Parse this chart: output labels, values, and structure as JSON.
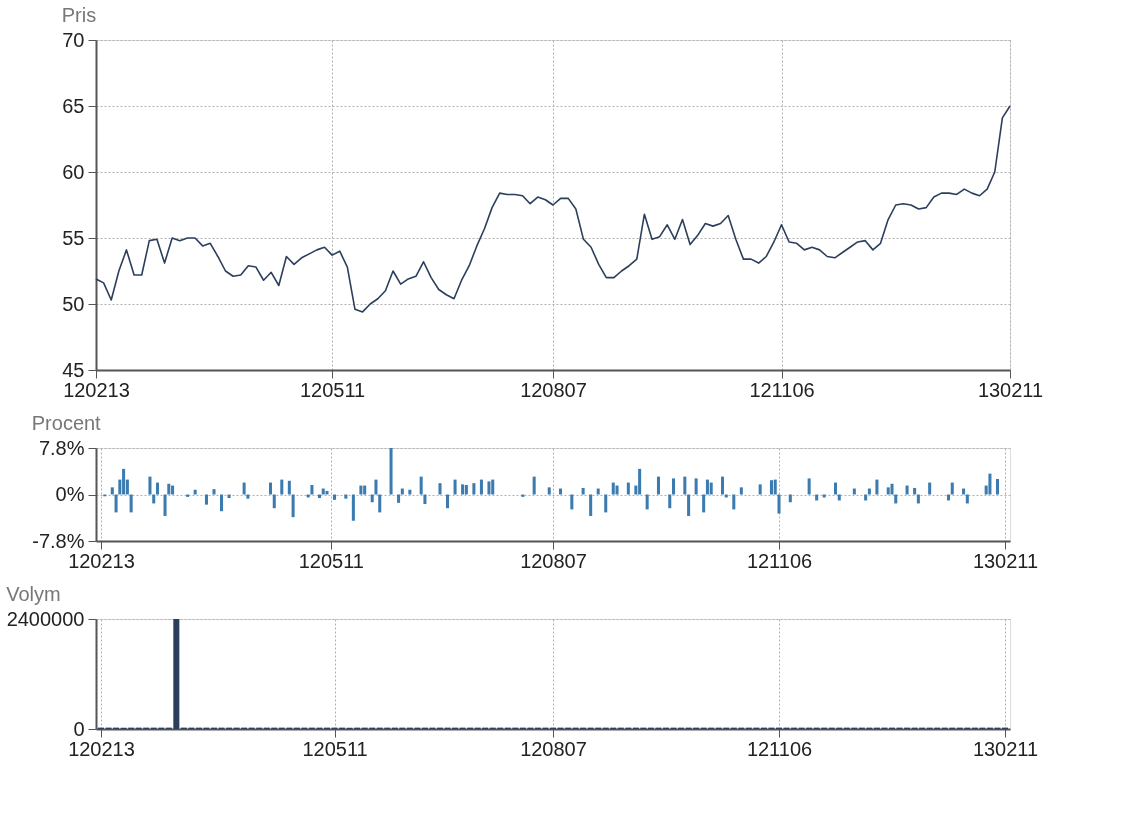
{
  "chart_data": [
    {
      "type": "line",
      "title": "Pris",
      "categories": [
        "120213",
        null,
        null,
        null,
        null,
        null,
        null,
        null,
        null,
        null,
        null,
        null,
        null,
        null,
        null,
        null,
        null,
        null,
        null,
        null,
        null,
        null,
        null,
        null,
        null,
        null,
        null,
        null,
        null,
        null,
        null,
        "120511",
        null,
        null,
        null,
        null,
        null,
        null,
        null,
        null,
        null,
        null,
        null,
        null,
        null,
        null,
        null,
        null,
        null,
        null,
        null,
        null,
        null,
        null,
        null,
        null,
        null,
        null,
        null,
        null,
        "120807",
        null,
        null,
        null,
        null,
        null,
        null,
        null,
        null,
        null,
        null,
        null,
        null,
        null,
        null,
        null,
        null,
        null,
        null,
        null,
        null,
        null,
        null,
        null,
        null,
        null,
        null,
        null,
        null,
        null,
        "121106",
        null,
        null,
        null,
        null,
        null,
        null,
        null,
        null,
        null,
        null,
        null,
        null,
        null,
        null,
        null,
        null,
        null,
        null,
        null,
        null,
        null,
        null,
        null,
        null,
        null,
        null,
        null,
        null,
        null,
        "130211"
      ],
      "values": [
        51.9,
        51.6,
        50.3,
        52.5,
        54.1,
        52.2,
        52.2,
        54.8,
        54.9,
        53.1,
        55,
        54.8,
        55,
        55,
        54.4,
        54.6,
        53.6,
        52.5,
        52.1,
        52.2,
        52.9,
        52.8,
        51.8,
        52.4,
        51.4,
        53.6,
        53,
        53.5,
        53.8,
        54.1,
        54.3,
        53.7,
        54,
        52.8,
        49.6,
        49.4,
        50,
        50.4,
        51,
        52.5,
        51.5,
        51.9,
        52.1,
        53.2,
        52,
        51.1,
        50.7,
        50.4,
        51.8,
        52.9,
        54.4,
        55.7,
        57.3,
        58.4,
        58.3,
        58.3,
        58.2,
        57.6,
        58.1,
        57.9,
        57.5,
        58,
        58,
        57.2,
        54.9,
        54.3,
        53,
        52,
        52,
        52.5,
        52.9,
        53.4,
        56.8,
        54.9,
        55.1,
        56,
        54.9,
        56.4,
        54.5,
        55.2,
        56.1,
        55.9,
        56.1,
        56.7,
        54.9,
        53.4,
        53.4,
        53.1,
        53.6,
        54.7,
        56,
        54.7,
        54.6,
        54.1,
        54.3,
        54.1,
        53.6,
        53.5,
        53.9,
        54.3,
        54.7,
        54.8,
        54.1,
        54.6,
        56.4,
        57.5,
        57.6,
        57.5,
        57.2,
        57.3,
        58.1,
        58.4,
        58.4,
        58.3,
        58.7,
        58.4,
        58.2,
        58.7,
        60,
        64.1,
        65
      ],
      "color": "#2b3f5c",
      "ylim": [
        45,
        70
      ],
      "yticks": [
        45,
        50,
        55,
        60,
        65,
        70
      ],
      "grid": true
    },
    {
      "type": "bar",
      "title": "Procent",
      "categories": [
        "120213",
        null,
        null,
        null,
        null,
        null,
        null,
        null,
        null,
        null,
        null,
        null,
        null,
        null,
        null,
        null,
        null,
        null,
        null,
        null,
        null,
        null,
        null,
        null,
        null,
        null,
        null,
        null,
        null,
        null,
        null,
        null,
        null,
        null,
        null,
        null,
        null,
        null,
        null,
        null,
        null,
        null,
        null,
        null,
        null,
        null,
        null,
        null,
        null,
        null,
        null,
        null,
        null,
        null,
        null,
        null,
        null,
        null,
        null,
        null,
        null,
        "120511",
        null,
        null,
        null,
        null,
        null,
        null,
        null,
        null,
        null,
        null,
        null,
        null,
        null,
        null,
        null,
        null,
        null,
        null,
        null,
        null,
        null,
        null,
        null,
        null,
        null,
        null,
        null,
        null,
        null,
        null,
        null,
        null,
        null,
        null,
        null,
        null,
        null,
        null,
        null,
        null,
        null,
        null,
        null,
        null,
        null,
        null,
        null,
        null,
        null,
        null,
        null,
        null,
        null,
        null,
        null,
        null,
        null,
        null,
        "120807",
        null,
        null,
        null,
        null,
        null,
        null,
        null,
        null,
        null,
        null,
        null,
        null,
        null,
        null,
        null,
        null,
        null,
        null,
        null,
        null,
        null,
        null,
        null,
        null,
        null,
        null,
        null,
        null,
        null,
        null,
        null,
        null,
        null,
        null,
        null,
        null,
        null,
        null,
        null,
        null,
        null,
        null,
        null,
        null,
        null,
        null,
        null,
        null,
        null,
        null,
        null,
        null,
        null,
        null,
        null,
        null,
        null,
        null,
        null,
        "121106",
        null,
        null,
        null,
        null,
        null,
        null,
        null,
        null,
        null,
        null,
        null,
        null,
        null,
        null,
        null,
        null,
        null,
        null,
        null,
        null,
        null,
        null,
        null,
        null,
        null,
        null,
        null,
        null,
        null,
        null,
        null,
        null,
        null,
        null,
        null,
        null,
        null,
        null,
        null,
        null,
        null,
        null,
        null,
        null,
        null,
        null,
        null,
        null,
        null,
        null,
        null,
        null,
        null,
        null,
        null,
        null,
        null,
        null,
        null,
        "130211"
      ],
      "values": [
        0,
        -0.3,
        0,
        1.2,
        -3,
        2.5,
        4.3,
        2.5,
        -3,
        0,
        0,
        0,
        0,
        3,
        -1.5,
        2,
        0,
        -3.6,
        1.8,
        1.5,
        0,
        0,
        0,
        -0.4,
        0,
        0.8,
        0,
        0,
        -1.7,
        0,
        0.9,
        0,
        -2.8,
        0,
        -0.6,
        0,
        0,
        0,
        2,
        -0.7,
        0,
        0,
        0,
        0,
        0,
        2,
        -2.3,
        0,
        2.5,
        0,
        2.3,
        -3.8,
        0,
        0,
        0,
        -0.5,
        1.6,
        0,
        -0.6,
        1,
        0.6,
        0,
        -0.9,
        0,
        0,
        -0.7,
        0,
        -4.4,
        0,
        1.5,
        1.5,
        0,
        -1.3,
        2.5,
        -3,
        0,
        0,
        7.8,
        0,
        -1.4,
        1,
        0,
        0.8,
        0,
        0,
        3,
        -1.6,
        0,
        0,
        0,
        1.9,
        0,
        -2.3,
        0,
        2.5,
        0,
        1.7,
        1.6,
        0,
        1.9,
        0,
        2.5,
        0,
        2.2,
        2.5,
        0,
        0,
        0,
        0,
        0,
        0,
        0,
        -0.4,
        0,
        0,
        3,
        0,
        0,
        0,
        1.2,
        0,
        0,
        1,
        0,
        0,
        -2.5,
        0,
        0,
        1.1,
        0,
        -3.6,
        0,
        1,
        0,
        -3,
        0,
        2,
        1.5,
        0,
        0,
        2,
        0,
        1.5,
        4.3,
        0,
        -2.5,
        0,
        0,
        3,
        0,
        0,
        -2.3,
        2.7,
        0,
        0,
        3,
        -3.6,
        0,
        2.7,
        0,
        -3,
        2.5,
        2,
        0,
        0,
        3,
        -0.5,
        0,
        -2.5,
        0,
        1.2,
        0,
        0,
        0,
        0,
        1.7,
        0,
        0,
        2.4,
        2.5,
        -3.2,
        0,
        0,
        -1.3,
        0,
        0,
        0,
        0,
        2.7,
        0,
        -1,
        0,
        -0.5,
        0,
        0,
        2,
        -1,
        0,
        0,
        0,
        1,
        0,
        0,
        -1,
        1,
        0,
        2.5,
        0,
        0,
        1.2,
        1.8,
        -1.5,
        0,
        0,
        1.5,
        0,
        1.1,
        -1.5,
        0,
        0,
        2,
        0,
        0,
        0,
        0,
        -1,
        2,
        0,
        0,
        1,
        -1.5,
        0,
        0,
        0,
        0,
        1.5,
        3.5,
        0,
        2.6,
        0,
        0
      ],
      "color": "#3b7bb0",
      "ylim": [
        -7.8,
        7.8
      ],
      "yticks": [
        {
          "value": -7.8,
          "label": "-7.8%"
        },
        {
          "value": 0,
          "label": "0%"
        },
        {
          "value": 7.8,
          "label": "7.8%"
        }
      ],
      "grid": true
    },
    {
      "type": "bar",
      "title": "Volym",
      "categories": [
        "120213",
        null,
        null,
        null,
        null,
        null,
        null,
        null,
        null,
        null,
        null,
        null,
        null,
        null,
        null,
        null,
        null,
        null,
        null,
        null,
        null,
        null,
        null,
        null,
        null,
        null,
        null,
        null,
        null,
        null,
        null,
        "120511",
        null,
        null,
        null,
        null,
        null,
        null,
        null,
        null,
        null,
        null,
        null,
        null,
        null,
        null,
        null,
        null,
        null,
        null,
        null,
        null,
        null,
        null,
        null,
        null,
        null,
        null,
        null,
        null,
        "120807",
        null,
        null,
        null,
        null,
        null,
        null,
        null,
        null,
        null,
        null,
        null,
        null,
        null,
        null,
        null,
        null,
        null,
        null,
        null,
        null,
        null,
        null,
        null,
        null,
        null,
        null,
        null,
        null,
        null,
        "121106",
        null,
        null,
        null,
        null,
        null,
        null,
        null,
        null,
        null,
        null,
        null,
        null,
        null,
        null,
        null,
        null,
        null,
        null,
        null,
        null,
        null,
        null,
        null,
        null,
        null,
        null,
        null,
        null,
        null,
        "130211"
      ],
      "values": [
        30000,
        30000,
        30000,
        30000,
        30000,
        30000,
        30000,
        30000,
        30000,
        30000,
        2400000,
        30000,
        30000,
        30000,
        30000,
        30000,
        30000,
        30000,
        30000,
        30000,
        30000,
        30000,
        30000,
        30000,
        30000,
        30000,
        30000,
        30000,
        30000,
        30000,
        30000,
        30000,
        30000,
        30000,
        30000,
        30000,
        30000,
        30000,
        30000,
        30000,
        30000,
        30000,
        30000,
        30000,
        30000,
        30000,
        30000,
        30000,
        30000,
        30000,
        30000,
        30000,
        30000,
        30000,
        30000,
        30000,
        30000,
        30000,
        30000,
        30000,
        30000,
        30000,
        30000,
        30000,
        30000,
        30000,
        30000,
        30000,
        30000,
        30000,
        30000,
        30000,
        30000,
        30000,
        30000,
        30000,
        30000,
        30000,
        30000,
        30000,
        30000,
        30000,
        30000,
        30000,
        30000,
        30000,
        30000,
        30000,
        30000,
        30000,
        30000,
        30000,
        30000,
        30000,
        30000,
        30000,
        30000,
        30000,
        30000,
        30000,
        30000,
        30000,
        30000,
        30000,
        30000,
        30000,
        30000,
        30000,
        30000,
        30000,
        30000,
        30000,
        30000,
        30000,
        30000,
        30000,
        30000,
        30000,
        30000,
        30000,
        30000
      ],
      "color": "#2b3f5c",
      "ylim": [
        0,
        2400000
      ],
      "yticks": [
        0,
        2400000
      ],
      "grid": true
    }
  ]
}
